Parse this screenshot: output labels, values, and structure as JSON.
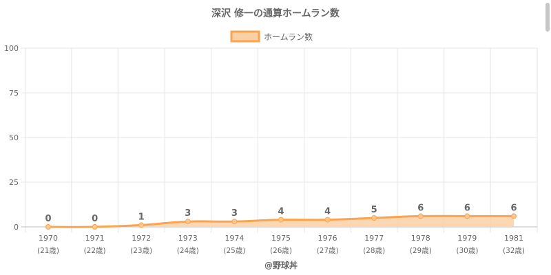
{
  "chart_data": {
    "type": "area",
    "title": "深沢 修一の通算ホームラン数",
    "categories": [
      "1970",
      "1971",
      "1972",
      "1973",
      "1974",
      "1975",
      "1976",
      "1977",
      "1978",
      "1979",
      "1981"
    ],
    "sub_labels": [
      "(21歳)",
      "(22歳)",
      "(23歳)",
      "(24歳)",
      "(25歳)",
      "(26歳)",
      "(27歳)",
      "(28歳)",
      "(29歳)",
      "(30歳)",
      "(32歳)"
    ],
    "series": [
      {
        "name": "ホームラン数",
        "values": [
          0,
          0,
          1,
          3,
          3,
          4,
          4,
          5,
          6,
          6,
          6
        ]
      }
    ],
    "ylim": [
      0,
      100
    ],
    "yticks": [
      0,
      25,
      50,
      75,
      100
    ],
    "grid": true,
    "legend_position": "top",
    "data_labels": true,
    "colors": {
      "line": "#f9a450",
      "fill": "#fdd0a3",
      "grid": "#e5e5e5",
      "text": "#666666"
    }
  },
  "footer": "@野球丼"
}
